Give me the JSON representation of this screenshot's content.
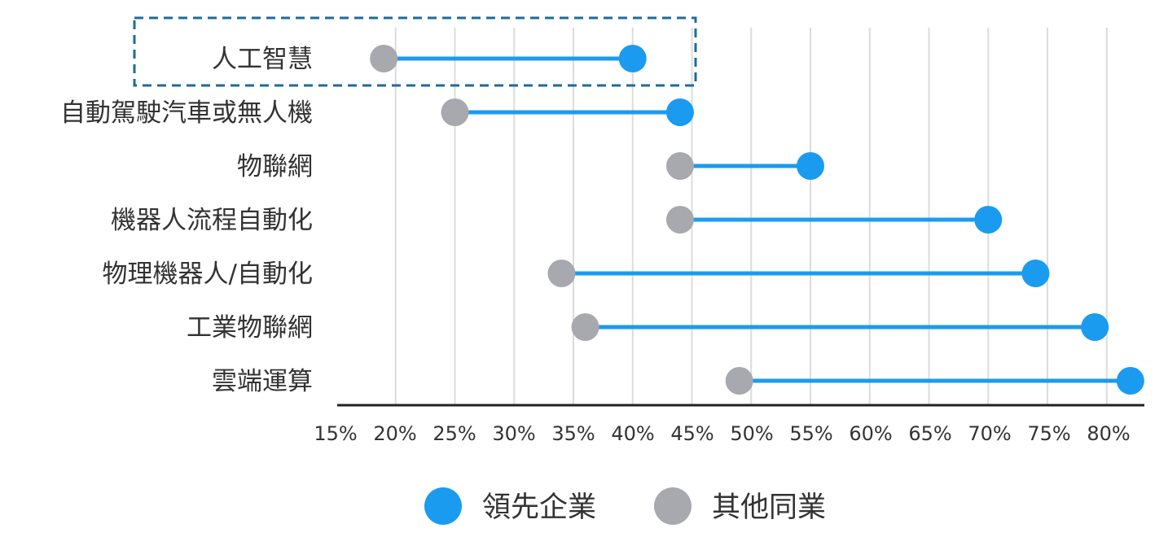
{
  "chart_data": {
    "type": "dumbbell",
    "categories": [
      "人工智慧",
      "自動駕駛汽車或無人機",
      "物聯網",
      "機器人流程自動化",
      "物理機器人/自動化",
      "工業物聯網",
      "雲端運算"
    ],
    "series": [
      {
        "name": "領先企業",
        "color": "#1a9bf0",
        "values": [
          40,
          44,
          55,
          70,
          74,
          79,
          82
        ]
      },
      {
        "name": "其他同業",
        "color": "#a7a9ae",
        "values": [
          19,
          25,
          44,
          44,
          34,
          36,
          49
        ]
      }
    ],
    "x_ticks": [
      "15%",
      "20%",
      "25%",
      "30%",
      "35%",
      "40%",
      "45%",
      "50%",
      "55%",
      "60%",
      "65%",
      "70%",
      "75%",
      "80%"
    ],
    "xlim": [
      15,
      85
    ],
    "grid": "vertical",
    "highlight": {
      "category": "人工智慧",
      "style": "dashed box",
      "color": "#1f6b99"
    },
    "legend": {
      "position": "bottom-center"
    },
    "colors": {
      "gridline": "#dcdcdc",
      "axis": "#222222",
      "connector": "#1a9bf0"
    }
  }
}
